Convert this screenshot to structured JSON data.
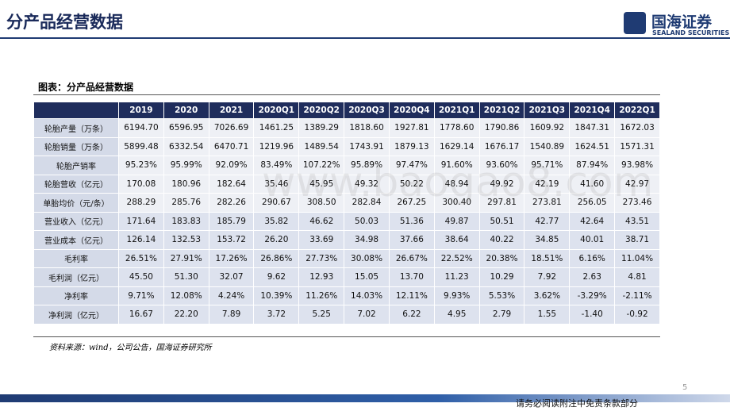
{
  "header": {
    "title": "分产品经营数据",
    "logo_cn": "国海证券",
    "logo_en": "SEALAND SECURITIES"
  },
  "caption": "图表：分产品经营数据",
  "table": {
    "columns": [
      "2019",
      "2020",
      "2021",
      "2020Q1",
      "2020Q2",
      "2020Q3",
      "2020Q4",
      "2021Q1",
      "2021Q2",
      "2021Q3",
      "2021Q4",
      "2022Q1"
    ],
    "rows": [
      {
        "label": "轮胎产量（万条）",
        "values": [
          "6194.70",
          "6596.95",
          "7026.69",
          "1461.25",
          "1389.29",
          "1818.60",
          "1927.81",
          "1778.60",
          "1790.86",
          "1609.92",
          "1847.31",
          "1672.03"
        ]
      },
      {
        "label": "轮胎销量（万条）",
        "values": [
          "5899.48",
          "6332.54",
          "6470.71",
          "1219.96",
          "1489.54",
          "1743.91",
          "1879.13",
          "1629.14",
          "1676.17",
          "1540.89",
          "1624.51",
          "1571.31"
        ]
      },
      {
        "label": "轮胎产销率",
        "values": [
          "95.23%",
          "95.99%",
          "92.09%",
          "83.49%",
          "107.22%",
          "95.89%",
          "97.47%",
          "91.60%",
          "93.60%",
          "95.71%",
          "87.94%",
          "93.98%"
        ]
      },
      {
        "label": "轮胎营收（亿元）",
        "values": [
          "170.08",
          "180.96",
          "182.64",
          "35.46",
          "45.95",
          "49.32",
          "50.22",
          "48.94",
          "49.92",
          "42.19",
          "41.60",
          "42.97"
        ]
      },
      {
        "label": "单胎均价（元/条）",
        "values": [
          "288.29",
          "285.76",
          "282.26",
          "290.67",
          "308.50",
          "282.84",
          "267.25",
          "300.40",
          "297.81",
          "273.81",
          "256.05",
          "273.46"
        ]
      },
      {
        "label": "营业收入（亿元）",
        "values": [
          "171.64",
          "183.83",
          "185.79",
          "35.82",
          "46.62",
          "50.03",
          "51.36",
          "49.87",
          "50.51",
          "42.77",
          "42.64",
          "43.51"
        ]
      },
      {
        "label": "营业成本（亿元）",
        "values": [
          "126.14",
          "132.53",
          "153.72",
          "26.20",
          "33.69",
          "34.98",
          "37.66",
          "38.64",
          "40.22",
          "34.85",
          "40.01",
          "38.71"
        ]
      },
      {
        "label": "毛利率",
        "values": [
          "26.51%",
          "27.91%",
          "17.26%",
          "26.86%",
          "27.73%",
          "30.08%",
          "26.67%",
          "22.52%",
          "20.38%",
          "18.51%",
          "6.16%",
          "11.04%"
        ]
      },
      {
        "label": "毛利润（亿元）",
        "values": [
          "45.50",
          "51.30",
          "32.07",
          "9.62",
          "12.93",
          "15.05",
          "13.70",
          "11.23",
          "10.29",
          "7.92",
          "2.63",
          "4.81"
        ]
      },
      {
        "label": "净利率",
        "values": [
          "9.71%",
          "12.08%",
          "4.24%",
          "10.39%",
          "11.26%",
          "14.03%",
          "12.11%",
          "9.93%",
          "5.53%",
          "3.62%",
          "-3.29%",
          "-2.11%"
        ]
      },
      {
        "label": "净利润（亿元）",
        "values": [
          "16.67",
          "22.20",
          "7.89",
          "3.72",
          "5.25",
          "7.02",
          "6.22",
          "4.95",
          "2.79",
          "1.55",
          "-1.40",
          "-0.92"
        ]
      }
    ]
  },
  "source": "资料来源：wind，公司公告，国海证券研究所",
  "watermark": "www.baogao8.com",
  "page_number": "5",
  "footer": "请务必阅读附注中免责条款部分"
}
